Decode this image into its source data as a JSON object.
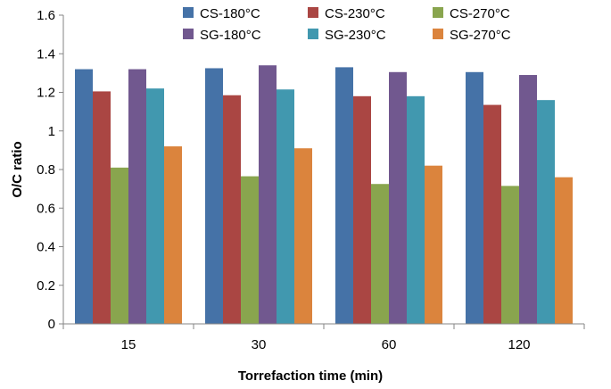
{
  "chart_data": {
    "type": "bar",
    "title": "",
    "xlabel": "Torrefaction time (min)",
    "ylabel": "O/C ratio",
    "categories": [
      "15",
      "30",
      "60",
      "120"
    ],
    "ylim": [
      0,
      1.6
    ],
    "yticks": [
      "0",
      "0.2",
      "0.4",
      "0.6",
      "0.8",
      "1",
      "1.2",
      "1.4",
      "1.6"
    ],
    "grid": false,
    "legend_position": "top",
    "series": [
      {
        "name": "CS-180°C",
        "color": "#4572A7",
        "values": [
          1.32,
          1.325,
          1.33,
          1.305
        ]
      },
      {
        "name": "CS-230°C",
        "color": "#AA4643",
        "values": [
          1.205,
          1.185,
          1.18,
          1.135
        ]
      },
      {
        "name": "CS-270°C",
        "color": "#89A54E",
        "values": [
          0.81,
          0.765,
          0.725,
          0.715
        ]
      },
      {
        "name": "SG-180°C",
        "color": "#71588F",
        "values": [
          1.32,
          1.34,
          1.305,
          1.29
        ]
      },
      {
        "name": "SG-230°C",
        "color": "#4198AF",
        "values": [
          1.22,
          1.215,
          1.18,
          1.16
        ]
      },
      {
        "name": "SG-270°C",
        "color": "#DB843D",
        "values": [
          0.92,
          0.91,
          0.82,
          0.76
        ]
      }
    ]
  }
}
